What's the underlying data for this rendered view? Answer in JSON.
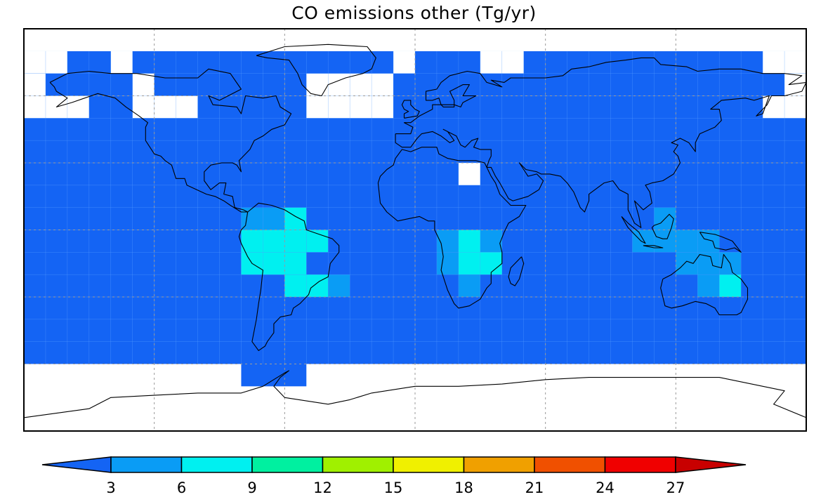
{
  "title": "CO emissions other (Tg/yr)",
  "colors": {
    "land_outline": "#000000",
    "missing": "#ffffff",
    "grid_line": "#9a9a9a"
  },
  "map": {
    "projection": "plate-carree",
    "lon_range": [
      -180,
      180
    ],
    "lat_range": [
      -90,
      90
    ],
    "gridlines": {
      "lon": [
        -120,
        -60,
        0,
        60,
        120
      ],
      "lat": [
        -60,
        -30,
        0,
        30,
        60
      ]
    },
    "cell_deg": 10,
    "background_color": "#1464f4",
    "missing_cells": [
      {
        "lon": [
          -180,
          -160
        ],
        "lat": [
          70,
          80
        ]
      },
      {
        "lon": [
          -140,
          -130
        ],
        "lat": [
          70,
          80
        ]
      },
      {
        "lon": [
          -180,
          -170
        ],
        "lat": [
          60,
          70
        ]
      },
      {
        "lon": [
          -180,
          -150
        ],
        "lat": [
          50,
          60
        ]
      },
      {
        "lon": [
          -130,
          -120
        ],
        "lat": [
          60,
          70
        ]
      },
      {
        "lon": [
          -130,
          -100
        ],
        "lat": [
          50,
          60
        ]
      },
      {
        "lon": [
          -50,
          -10
        ],
        "lat": [
          50,
          70
        ]
      },
      {
        "lon": [
          -10,
          0
        ],
        "lat": [
          70,
          80
        ]
      },
      {
        "lon": [
          30,
          50
        ],
        "lat": [
          70,
          80
        ]
      },
      {
        "lon": [
          160,
          180
        ],
        "lat": [
          70,
          80
        ]
      },
      {
        "lon": [
          170,
          180
        ],
        "lat": [
          60,
          70
        ]
      },
      {
        "lon": [
          160,
          180
        ],
        "lat": [
          50,
          60
        ]
      },
      {
        "lon": [
          20,
          30
        ],
        "lat": [
          20,
          30
        ]
      },
      {
        "lon": [
          -180,
          180
        ],
        "lat": [
          -90,
          -60
        ]
      },
      {
        "lon": [
          -180,
          180
        ],
        "lat": [
          80,
          90
        ]
      }
    ],
    "fill_cells": [
      {
        "lon": [
          -80,
          -70
        ],
        "lat": [
          60,
          70
        ],
        "color": "#1464f4"
      },
      {
        "lon": [
          -100,
          -70
        ],
        "lat": [
          0,
          10
        ],
        "color": "#1464f4"
      },
      {
        "lon": [
          -70,
          -60
        ],
        "lat": [
          -50,
          -60
        ],
        "color": "#1464f4"
      },
      {
        "lon": [
          -80,
          -60
        ],
        "lat": [
          0,
          10
        ],
        "color": "#0a9cf5"
      },
      {
        "lon": [
          -80,
          -50
        ],
        "lat": [
          -10,
          0
        ],
        "color": "#00f0f0"
      },
      {
        "lon": [
          -70,
          -50
        ],
        "lat": [
          -20,
          -10
        ],
        "color": "#00f0f0"
      },
      {
        "lon": [
          -60,
          -40
        ],
        "lat": [
          -30,
          -20
        ],
        "color": "#00f0f0"
      },
      {
        "lon": [
          -40,
          -30
        ],
        "lat": [
          -30,
          -20
        ],
        "color": "#0a9cf5"
      },
      {
        "lon": [
          -80,
          -60
        ],
        "lat": [
          -20,
          -10
        ],
        "color": "#00f0f0"
      },
      {
        "lon": [
          -80,
          -70
        ],
        "lat": [
          -20,
          -10
        ],
        "color": "#00f0f0"
      },
      {
        "lon": [
          -60,
          -50
        ],
        "lat": [
          10,
          0
        ],
        "color": "#00f0f0"
      },
      {
        "lon": [
          -50,
          -40
        ],
        "lat": [
          0,
          -10
        ],
        "color": "#00f0f0"
      },
      {
        "lon": [
          10,
          20
        ],
        "lat": [
          -10,
          0
        ],
        "color": "#0a9cf5"
      },
      {
        "lon": [
          20,
          40
        ],
        "lat": [
          -20,
          0
        ],
        "color": "#00f0f0"
      },
      {
        "lon": [
          30,
          40
        ],
        "lat": [
          -10,
          0
        ],
        "color": "#0a9cf5"
      },
      {
        "lon": [
          10,
          20
        ],
        "lat": [
          -20,
          -10
        ],
        "color": "#0a9cf5"
      },
      {
        "lon": [
          20,
          30
        ],
        "lat": [
          -30,
          -20
        ],
        "color": "#0a9cf5"
      },
      {
        "lon": [
          110,
          120
        ],
        "lat": [
          0,
          10
        ],
        "color": "#0a9cf5"
      },
      {
        "lon": [
          100,
          140
        ],
        "lat": [
          -10,
          0
        ],
        "color": "#0a9cf5"
      },
      {
        "lon": [
          120,
          140
        ],
        "lat": [
          -20,
          -10
        ],
        "color": "#0a9cf5"
      },
      {
        "lon": [
          140,
          150
        ],
        "lat": [
          -20,
          -10
        ],
        "color": "#0a9cf5"
      },
      {
        "lon": [
          140,
          150
        ],
        "lat": [
          -30,
          -20
        ],
        "color": "#00f0f0"
      },
      {
        "lon": [
          130,
          140
        ],
        "lat": [
          -30,
          -20
        ],
        "color": "#0a9cf5"
      }
    ]
  },
  "colorbar": {
    "tick_labels": [
      "3",
      "6",
      "9",
      "12",
      "15",
      "18",
      "21",
      "24",
      "27"
    ],
    "colors": [
      "#1464f4",
      "#0a9cf5",
      "#00f0f0",
      "#00f0a0",
      "#a0f000",
      "#f0f000",
      "#f0a000",
      "#f05000",
      "#f00000",
      "#c80000"
    ]
  }
}
